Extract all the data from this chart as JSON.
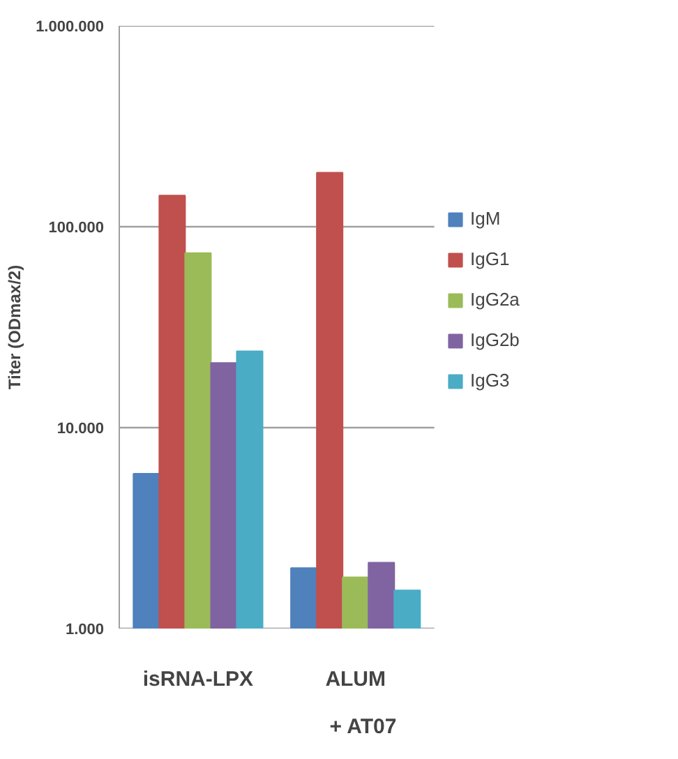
{
  "chart_data": {
    "type": "bar",
    "ylabel": "Titer (ODmax/2)",
    "xlabel": "+ AT07",
    "categories": [
      "isRNA-LPX",
      "ALUM"
    ],
    "series": [
      {
        "name": "IgM",
        "color": "#4f81bd",
        "values": [
          5900,
          2000
        ]
      },
      {
        "name": "IgG1",
        "color": "#c0504d",
        "values": [
          143000,
          186000
        ]
      },
      {
        "name": "IgG2a",
        "color": "#9bbb59",
        "values": [
          74000,
          1800
        ]
      },
      {
        "name": "IgG2b",
        "color": "#8064a2",
        "values": [
          21000,
          2130
        ]
      },
      {
        "name": "IgG3",
        "color": "#4bacc6",
        "values": [
          24000,
          1550
        ]
      }
    ],
    "log": "y",
    "ylim": [
      1000,
      1000000
    ],
    "yticks": [
      {
        "value": 1000,
        "label": "1.000"
      },
      {
        "value": 10000,
        "label": "10.000"
      },
      {
        "value": 100000,
        "label": "100.000"
      },
      {
        "value": 1000000,
        "label": "1.000.000"
      }
    ],
    "grid": "y",
    "legend": "right"
  }
}
